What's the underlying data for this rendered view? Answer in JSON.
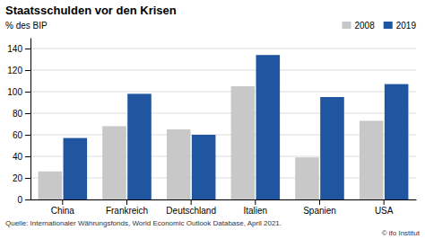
{
  "chart_data": {
    "type": "bar",
    "title": "Staatsschulden vor den Krisen",
    "ylabel": "% des BIP",
    "categories": [
      "China",
      "Frankreich",
      "Deutschland",
      "Italien",
      "Spanien",
      "USA"
    ],
    "series": [
      {
        "name": "2008",
        "color": "#c8c8c8",
        "values": [
          26,
          68,
          65,
          105,
          39,
          73
        ]
      },
      {
        "name": "2019",
        "color": "#2055a0",
        "values": [
          57,
          98,
          60,
          134,
          95,
          107
        ]
      }
    ],
    "ylim": [
      0,
      150
    ],
    "yticks": [
      0,
      20,
      40,
      60,
      80,
      100,
      120,
      140
    ],
    "grid": true,
    "legend": "top-right",
    "footnote": "Quelle: Internationaler Währungsfonds, World Economic Outlook Database, April 2021.",
    "credit": "© ifo Institut"
  }
}
